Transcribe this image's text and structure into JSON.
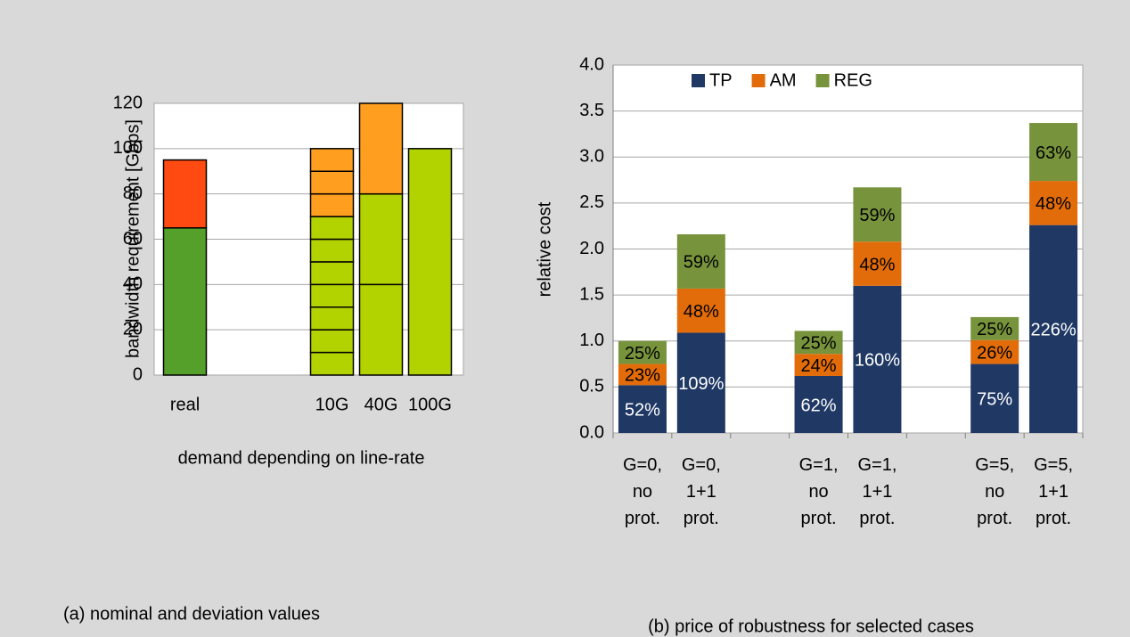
{
  "chart_data": [
    {
      "type": "stacked_bar",
      "caption": "(a) nominal and deviation values",
      "x_label": "demand depending on line-rate",
      "y_label": "bandwidth requirement [Gbps]",
      "categories": [
        "real",
        null,
        null,
        "10G",
        "40G",
        "100G"
      ],
      "stacks": [
        [
          {
            "value": 65,
            "color": "#55a02a"
          },
          {
            "value": 30,
            "color": "#ff4a12"
          }
        ],
        [],
        [],
        [
          {
            "value": 10,
            "color": "#b2d300"
          },
          {
            "value": 10,
            "color": "#b2d300"
          },
          {
            "value": 10,
            "color": "#b2d300"
          },
          {
            "value": 10,
            "color": "#b2d300"
          },
          {
            "value": 10,
            "color": "#b2d300"
          },
          {
            "value": 10,
            "color": "#b2d300"
          },
          {
            "value": 10,
            "color": "#b2d300"
          },
          {
            "value": 10,
            "color": "#ff9e1f"
          },
          {
            "value": 10,
            "color": "#ff9e1f"
          },
          {
            "value": 10,
            "color": "#ff9e1f"
          }
        ],
        [
          {
            "value": 40,
            "color": "#b2d300"
          },
          {
            "value": 40,
            "color": "#b2d300"
          },
          {
            "value": 40,
            "color": "#ff9e1f"
          }
        ],
        [
          {
            "value": 100,
            "color": "#b2d300"
          }
        ]
      ],
      "ylim": [
        0,
        120
      ],
      "yticks": [
        0,
        20,
        40,
        60,
        80,
        100,
        120
      ],
      "grid": true
    },
    {
      "type": "stacked_bar",
      "caption": "(b) price of robustness for selected cases",
      "y_label": "relative cost",
      "categories": [
        "G=0,\nno\nprot.",
        "G=0,\n1+1\nprot.",
        null,
        "G=1,\nno\nprot.",
        "G=1,\n1+1\nprot.",
        null,
        "G=5,\nno\nprot.",
        "G=5,\n1+1\nprot."
      ],
      "series": [
        {
          "name": "TP",
          "color": "#1f3864",
          "label_color": "#ffffff",
          "values": [
            0.52,
            1.09,
            null,
            0.62,
            1.6,
            null,
            0.75,
            2.26
          ],
          "value_labels": [
            "52%",
            "109%",
            null,
            "62%",
            "160%",
            null,
            "75%",
            "226%"
          ]
        },
        {
          "name": "AM",
          "color": "#e36c0a",
          "label_color": "#000000",
          "values": [
            0.23,
            0.48,
            null,
            0.24,
            0.48,
            null,
            0.26,
            0.48
          ],
          "value_labels": [
            "23%",
            "48%",
            null,
            "24%",
            "48%",
            null,
            "26%",
            "48%"
          ]
        },
        {
          "name": "REG",
          "color": "#77933c",
          "label_color": "#000000",
          "values": [
            0.25,
            0.59,
            null,
            0.25,
            0.59,
            null,
            0.25,
            0.63
          ],
          "value_labels": [
            "25%",
            "59%",
            null,
            "25%",
            "59%",
            null,
            "25%",
            "63%"
          ]
        }
      ],
      "ylim": [
        0,
        4
      ],
      "yticks": [
        {
          "value": 0,
          "label": "0.0"
        },
        {
          "value": 0.5,
          "label": "0.5"
        },
        {
          "value": 1,
          "label": "1.0"
        },
        {
          "value": 1.5,
          "label": "1.5"
        },
        {
          "value": 2,
          "label": "2.0"
        },
        {
          "value": 2.5,
          "label": "2.5"
        },
        {
          "value": 3,
          "label": "3.0"
        },
        {
          "value": 3.5,
          "label": "3.5"
        },
        {
          "value": 4,
          "label": "4.0"
        }
      ],
      "grid": true,
      "legend": "top"
    }
  ]
}
